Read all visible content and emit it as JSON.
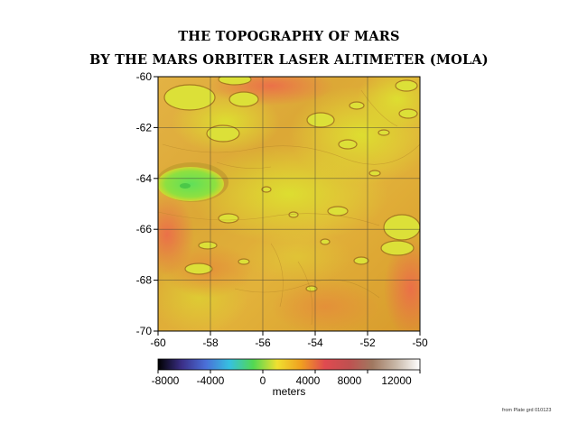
{
  "title_line1": "THE TOPOGRAPHY OF MARS",
  "title_line2": "BY THE MARS ORBITER LASER ALTIMETER (MOLA)",
  "map": {
    "y_ticks": [
      "-60",
      "-62",
      "-64",
      "-66",
      "-68",
      "-70"
    ],
    "x_ticks": [
      "-60",
      "-58",
      "-56",
      "-54",
      "-52",
      "-50"
    ],
    "colors": {
      "low": "#d9962a",
      "mid": "#e8b73a",
      "high": "#d8dc28",
      "peak": "#5fdc4a",
      "red": "#e8604a"
    }
  },
  "colorbar": {
    "tick_labels": [
      "-8000",
      "-4000",
      "0",
      "4000",
      "8000",
      "12000"
    ],
    "units": "meters",
    "stops": [
      "#000000",
      "#3b2f88",
      "#4a6fd8",
      "#36c0e0",
      "#52d852",
      "#f0e030",
      "#f0a020",
      "#e04a50",
      "#c05050",
      "#a07860",
      "#c8b8a8",
      "#ffffff"
    ]
  },
  "credit": "from Plate grd 010123"
}
